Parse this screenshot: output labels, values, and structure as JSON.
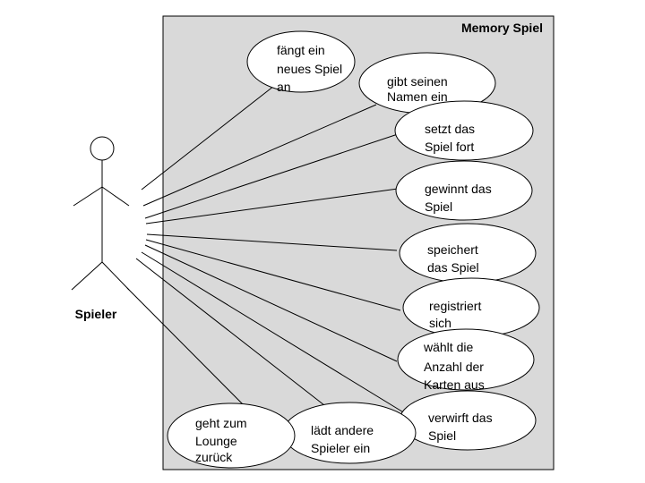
{
  "system": {
    "title": "Memory Spiel",
    "fill": "#d9d9d9",
    "stroke": "#000000"
  },
  "actor": {
    "name": "Spieler"
  },
  "use_cases": [
    {
      "id": "neues-spiel",
      "lines": [
        "fängt ein",
        "neues Spiel",
        "an"
      ]
    },
    {
      "id": "namen-ein",
      "lines": [
        "gibt seinen",
        "Namen ein"
      ]
    },
    {
      "id": "spiel-fort",
      "lines": [
        "setzt das",
        "Spiel fort"
      ]
    },
    {
      "id": "gewinnt",
      "lines": [
        "gewinnt das",
        "Spiel"
      ]
    },
    {
      "id": "speichert",
      "lines": [
        "speichert",
        "das Spiel"
      ]
    },
    {
      "id": "registriert",
      "lines": [
        "registriert",
        "sich"
      ]
    },
    {
      "id": "anzahl-karten",
      "lines": [
        "wählt die",
        "Anzahl der",
        "Karten aus"
      ]
    },
    {
      "id": "verwirft",
      "lines": [
        "verwirft das",
        "Spiel"
      ]
    },
    {
      "id": "laedt-spieler",
      "lines": [
        "lädt andere",
        "Spieler ein"
      ]
    },
    {
      "id": "lounge",
      "lines": [
        "geht zum",
        "Lounge",
        "zurück"
      ]
    }
  ]
}
